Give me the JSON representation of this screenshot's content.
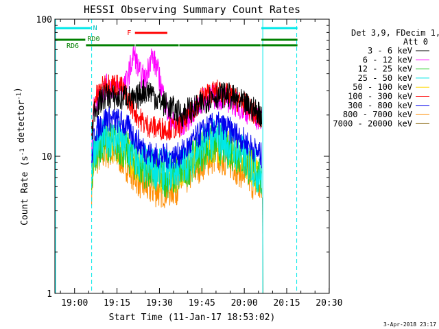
{
  "chart_data": {
    "type": "line",
    "title": "HESSI Observing Summary Count Rates",
    "xlabel": "Start Time (11-Jan-17 18:53:02)",
    "ylabel": "Count Rate (s⁻¹ detector⁻¹)",
    "y_scale": "log",
    "ylim": [
      1,
      100
    ],
    "xlim_minutes": [
      0,
      97
    ],
    "x_tick_labels": [
      "19:00",
      "19:15",
      "19:30",
      "19:45",
      "20:00",
      "20:15",
      "20:30"
    ],
    "y_tick_labels": [
      "1",
      "10",
      "100"
    ],
    "legend": {
      "header": [
        "Det 3,9, FDecim 1,",
        "Att 0"
      ],
      "placement": "right"
    },
    "series": [
      {
        "name": "3 - 6 keV",
        "color": "#000000",
        "noise": 0.1,
        "values": [
          [
            13,
            14
          ],
          [
            14,
            22
          ],
          [
            18,
            28
          ],
          [
            23,
            26
          ],
          [
            25,
            28
          ],
          [
            28,
            25
          ],
          [
            31,
            30
          ],
          [
            34,
            30
          ],
          [
            36,
            26
          ],
          [
            39,
            24
          ],
          [
            42,
            22
          ],
          [
            45,
            20
          ],
          [
            47,
            22
          ],
          [
            49,
            22
          ],
          [
            52,
            24
          ],
          [
            55,
            27
          ],
          [
            58,
            28
          ],
          [
            61,
            28
          ],
          [
            64,
            26
          ],
          [
            67,
            24
          ],
          [
            70,
            22
          ],
          [
            72,
            21
          ],
          [
            73,
            20
          ],
          [
            73.2,
            19.5
          ]
        ]
      },
      {
        "name": "6 - 12 keV",
        "color": "#ff00ff",
        "noise": 0.1,
        "values": [
          [
            13,
            13
          ],
          [
            14,
            24
          ],
          [
            18,
            32
          ],
          [
            23,
            32
          ],
          [
            25,
            33
          ],
          [
            28,
            56
          ],
          [
            30,
            40
          ],
          [
            32,
            36
          ],
          [
            34,
            54
          ],
          [
            36,
            45
          ],
          [
            38,
            30
          ],
          [
            40,
            20
          ],
          [
            42,
            17
          ],
          [
            45,
            17
          ],
          [
            47,
            19
          ],
          [
            49,
            21
          ],
          [
            52,
            25
          ],
          [
            55,
            27
          ],
          [
            58,
            27
          ],
          [
            61,
            26
          ],
          [
            64,
            24
          ],
          [
            67,
            22
          ],
          [
            70,
            20
          ],
          [
            72,
            19
          ],
          [
            73.2,
            18.5
          ]
        ]
      },
      {
        "name": "12 - 25 keV",
        "color": "#22cc22",
        "noise": 0.16,
        "values": [
          [
            13,
            7
          ],
          [
            14,
            11
          ],
          [
            18,
            13
          ],
          [
            23,
            12
          ],
          [
            26,
            10.5
          ],
          [
            30,
            8.5
          ],
          [
            33,
            8
          ],
          [
            36,
            7.5
          ],
          [
            40,
            7
          ],
          [
            43,
            7.2
          ],
          [
            46,
            8
          ],
          [
            49,
            9.5
          ],
          [
            52,
            11
          ],
          [
            55,
            12
          ],
          [
            58,
            12.2
          ],
          [
            61,
            11.5
          ],
          [
            64,
            10.5
          ],
          [
            67,
            9.5
          ],
          [
            70,
            8
          ],
          [
            72,
            7
          ],
          [
            73.2,
            6.8
          ]
        ]
      },
      {
        "name": "25 - 50 keV",
        "color": "#00e8e8",
        "noise": 0.16,
        "values": [
          [
            13,
            7.5
          ],
          [
            14,
            12
          ],
          [
            18,
            14
          ],
          [
            23,
            13
          ],
          [
            26,
            11
          ],
          [
            30,
            9
          ],
          [
            33,
            8.5
          ],
          [
            36,
            8
          ],
          [
            40,
            8
          ],
          [
            43,
            8
          ],
          [
            46,
            9
          ],
          [
            49,
            10.5
          ],
          [
            52,
            12
          ],
          [
            55,
            13
          ],
          [
            58,
            13.5
          ],
          [
            61,
            12.5
          ],
          [
            64,
            11
          ],
          [
            67,
            10
          ],
          [
            70,
            8.5
          ],
          [
            72,
            7.5
          ],
          [
            73.2,
            7
          ]
        ]
      },
      {
        "name": "50 - 100 keV",
        "color": "#ffd700",
        "noise": 0.14,
        "values": [
          [
            13,
            7
          ],
          [
            14,
            11
          ],
          [
            18,
            12.5
          ],
          [
            23,
            12
          ],
          [
            26,
            10
          ],
          [
            30,
            8.5
          ],
          [
            33,
            8
          ],
          [
            36,
            7.5
          ],
          [
            40,
            7.2
          ],
          [
            43,
            7.5
          ],
          [
            46,
            8.5
          ],
          [
            49,
            10
          ],
          [
            52,
            11.5
          ],
          [
            55,
            12
          ],
          [
            58,
            12
          ],
          [
            61,
            11.5
          ],
          [
            64,
            10.5
          ],
          [
            67,
            9.5
          ],
          [
            70,
            8
          ],
          [
            72,
            7
          ],
          [
            73.2,
            6.5
          ]
        ]
      },
      {
        "name": "100 - 300 keV",
        "color": "#ff0000",
        "noise": 0.09,
        "values": [
          [
            13,
            14
          ],
          [
            14,
            26
          ],
          [
            18,
            34
          ],
          [
            23,
            33
          ],
          [
            26,
            26
          ],
          [
            29,
            20
          ],
          [
            32,
            17
          ],
          [
            36,
            16
          ],
          [
            40,
            16
          ],
          [
            43,
            16
          ],
          [
            46,
            18
          ],
          [
            49,
            22
          ],
          [
            52,
            27
          ],
          [
            55,
            29
          ],
          [
            58,
            30
          ],
          [
            61,
            28
          ],
          [
            64,
            26
          ],
          [
            67,
            24
          ],
          [
            70,
            21
          ],
          [
            72,
            19
          ],
          [
            73.2,
            18
          ]
        ]
      },
      {
        "name": "300 - 800 keV",
        "color": "#0000ee",
        "noise": 0.1,
        "values": [
          [
            13,
            9
          ],
          [
            14,
            15
          ],
          [
            18,
            19
          ],
          [
            23,
            18
          ],
          [
            26,
            16
          ],
          [
            29,
            13
          ],
          [
            32,
            11
          ],
          [
            36,
            10
          ],
          [
            40,
            10
          ],
          [
            43,
            10
          ],
          [
            46,
            11
          ],
          [
            49,
            13
          ],
          [
            52,
            15
          ],
          [
            55,
            16.5
          ],
          [
            58,
            17
          ],
          [
            61,
            16
          ],
          [
            64,
            14.5
          ],
          [
            67,
            13
          ],
          [
            70,
            11.5
          ],
          [
            72,
            10.5
          ],
          [
            73.2,
            10
          ]
        ]
      },
      {
        "name": "800 - 7000 keV",
        "color": "#ff8c00",
        "noise": 0.14,
        "values": [
          [
            13,
            6
          ],
          [
            14,
            9.5
          ],
          [
            18,
            11
          ],
          [
            23,
            10
          ],
          [
            26,
            8.5
          ],
          [
            29,
            7
          ],
          [
            32,
            6
          ],
          [
            36,
            5.7
          ],
          [
            40,
            5.7
          ],
          [
            43,
            6
          ],
          [
            46,
            6.8
          ],
          [
            49,
            8
          ],
          [
            52,
            9
          ],
          [
            55,
            9.8
          ],
          [
            58,
            10
          ],
          [
            61,
            9.5
          ],
          [
            64,
            8.5
          ],
          [
            67,
            7.5
          ],
          [
            70,
            6.5
          ],
          [
            72,
            6
          ],
          [
            73.2,
            5.5
          ]
        ]
      },
      {
        "name": "7000 - 20000 keV",
        "color": "#8b6914",
        "noise": 0.02,
        "values": [
          [
            73.4,
            5
          ],
          [
            73.6,
            1
          ]
        ]
      }
    ],
    "status_bars": [
      {
        "name": "N",
        "color": "#00e8e8",
        "label_color": "#00c0c0",
        "segments": [
          [
            0,
            13
          ],
          [
            73,
            86
          ]
        ]
      },
      {
        "name": "F",
        "color": "#ff0000",
        "label_color": "#ff0000",
        "segments": [
          [
            28.3,
            40
          ]
        ]
      },
      {
        "name": "RD0",
        "color": "#008000",
        "label_color": "#008000",
        "segments": [
          [
            0,
            11
          ],
          [
            73,
            86
          ]
        ]
      },
      {
        "name": "RD6",
        "color": "#008000",
        "label_color": "#008000",
        "segments": [
          [
            11,
            28.5
          ],
          [
            28.5,
            44
          ],
          [
            44,
            73
          ],
          [
            73,
            86
          ]
        ]
      }
    ],
    "vertical_markers": {
      "solid": [
        73.5
      ],
      "dashed": [
        13,
        85.5
      ],
      "color": "#00e8e8"
    },
    "grid": false
  },
  "footer": {
    "timestamp": "3-Apr-2018 23:17"
  }
}
